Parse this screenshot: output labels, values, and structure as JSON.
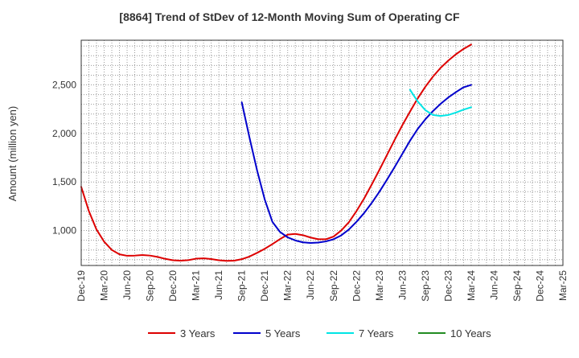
{
  "chart_data": {
    "type": "line",
    "title": "[8864]  Trend of StDev of 12-Month Moving Sum of Operating CF",
    "ylabel": "Amount (million yen)",
    "xlabel": "",
    "ylim": [
      640,
      2960
    ],
    "yticks": [
      1000,
      1500,
      2000,
      2500
    ],
    "ytick_labels": [
      "1,000",
      "1,500",
      "2,000",
      "2,500"
    ],
    "x_range": [
      "2019-12",
      "2025-03"
    ],
    "xtick_labels": [
      "Dec-19",
      "Mar-20",
      "Jun-20",
      "Sep-20",
      "Dec-20",
      "Mar-21",
      "Jun-21",
      "Sep-21",
      "Dec-21",
      "Mar-22",
      "Jun-22",
      "Sep-22",
      "Dec-22",
      "Mar-23",
      "Jun-23",
      "Sep-23",
      "Dec-23",
      "Mar-24",
      "Jun-24",
      "Sep-24",
      "Dec-24",
      "Mar-25"
    ],
    "grid": true,
    "legend_position": "bottom",
    "series": [
      {
        "name": "3 Years",
        "color": "#dd0000",
        "points": [
          [
            "2019-12",
            1450
          ],
          [
            "2020-01",
            1200
          ],
          [
            "2020-02",
            1010
          ],
          [
            "2020-03",
            885
          ],
          [
            "2020-04",
            800
          ],
          [
            "2020-05",
            755
          ],
          [
            "2020-06",
            740
          ],
          [
            "2020-07",
            742
          ],
          [
            "2020-08",
            748
          ],
          [
            "2020-09",
            742
          ],
          [
            "2020-10",
            728
          ],
          [
            "2020-11",
            708
          ],
          [
            "2020-12",
            694
          ],
          [
            "2021-01",
            690
          ],
          [
            "2021-02",
            695
          ],
          [
            "2021-03",
            710
          ],
          [
            "2021-04",
            714
          ],
          [
            "2021-05",
            706
          ],
          [
            "2021-06",
            694
          ],
          [
            "2021-07",
            688
          ],
          [
            "2021-08",
            690
          ],
          [
            "2021-09",
            705
          ],
          [
            "2021-10",
            732
          ],
          [
            "2021-11",
            770
          ],
          [
            "2021-12",
            812
          ],
          [
            "2022-01",
            860
          ],
          [
            "2022-02",
            912
          ],
          [
            "2022-03",
            958
          ],
          [
            "2022-04",
            965
          ],
          [
            "2022-05",
            952
          ],
          [
            "2022-06",
            928
          ],
          [
            "2022-07",
            910
          ],
          [
            "2022-08",
            910
          ],
          [
            "2022-09",
            938
          ],
          [
            "2022-10",
            1000
          ],
          [
            "2022-11",
            1085
          ],
          [
            "2022-12",
            1200
          ],
          [
            "2023-01",
            1330
          ],
          [
            "2023-02",
            1475
          ],
          [
            "2023-03",
            1625
          ],
          [
            "2023-04",
            1780
          ],
          [
            "2023-05",
            1935
          ],
          [
            "2023-06",
            2085
          ],
          [
            "2023-07",
            2225
          ],
          [
            "2023-08",
            2360
          ],
          [
            "2023-09",
            2480
          ],
          [
            "2023-10",
            2585
          ],
          [
            "2023-11",
            2675
          ],
          [
            "2023-12",
            2750
          ],
          [
            "2024-01",
            2815
          ],
          [
            "2024-02",
            2870
          ],
          [
            "2024-03",
            2915
          ]
        ]
      },
      {
        "name": "5 Years",
        "color": "#0000cc",
        "points": [
          [
            "2021-09",
            2320
          ],
          [
            "2021-10",
            1960
          ],
          [
            "2021-11",
            1620
          ],
          [
            "2021-12",
            1320
          ],
          [
            "2022-01",
            1090
          ],
          [
            "2022-02",
            985
          ],
          [
            "2022-03",
            930
          ],
          [
            "2022-04",
            898
          ],
          [
            "2022-05",
            878
          ],
          [
            "2022-06",
            872
          ],
          [
            "2022-07",
            876
          ],
          [
            "2022-08",
            888
          ],
          [
            "2022-09",
            910
          ],
          [
            "2022-10",
            950
          ],
          [
            "2022-11",
            1010
          ],
          [
            "2022-12",
            1090
          ],
          [
            "2023-01",
            1180
          ],
          [
            "2023-02",
            1285
          ],
          [
            "2023-03",
            1400
          ],
          [
            "2023-04",
            1525
          ],
          [
            "2023-05",
            1655
          ],
          [
            "2023-06",
            1790
          ],
          [
            "2023-07",
            1925
          ],
          [
            "2023-08",
            2045
          ],
          [
            "2023-09",
            2145
          ],
          [
            "2023-10",
            2230
          ],
          [
            "2023-11",
            2305
          ],
          [
            "2023-12",
            2370
          ],
          [
            "2024-01",
            2425
          ],
          [
            "2024-02",
            2475
          ],
          [
            "2024-03",
            2500
          ]
        ]
      },
      {
        "name": "7 Years",
        "color": "#00e5e5",
        "points": [
          [
            "2023-07",
            2450
          ],
          [
            "2023-08",
            2330
          ],
          [
            "2023-09",
            2240
          ],
          [
            "2023-10",
            2190
          ],
          [
            "2023-11",
            2180
          ],
          [
            "2023-12",
            2190
          ],
          [
            "2024-01",
            2215
          ],
          [
            "2024-02",
            2245
          ],
          [
            "2024-03",
            2270
          ]
        ]
      },
      {
        "name": "10 Years",
        "color": "#228b22",
        "points": []
      }
    ]
  }
}
